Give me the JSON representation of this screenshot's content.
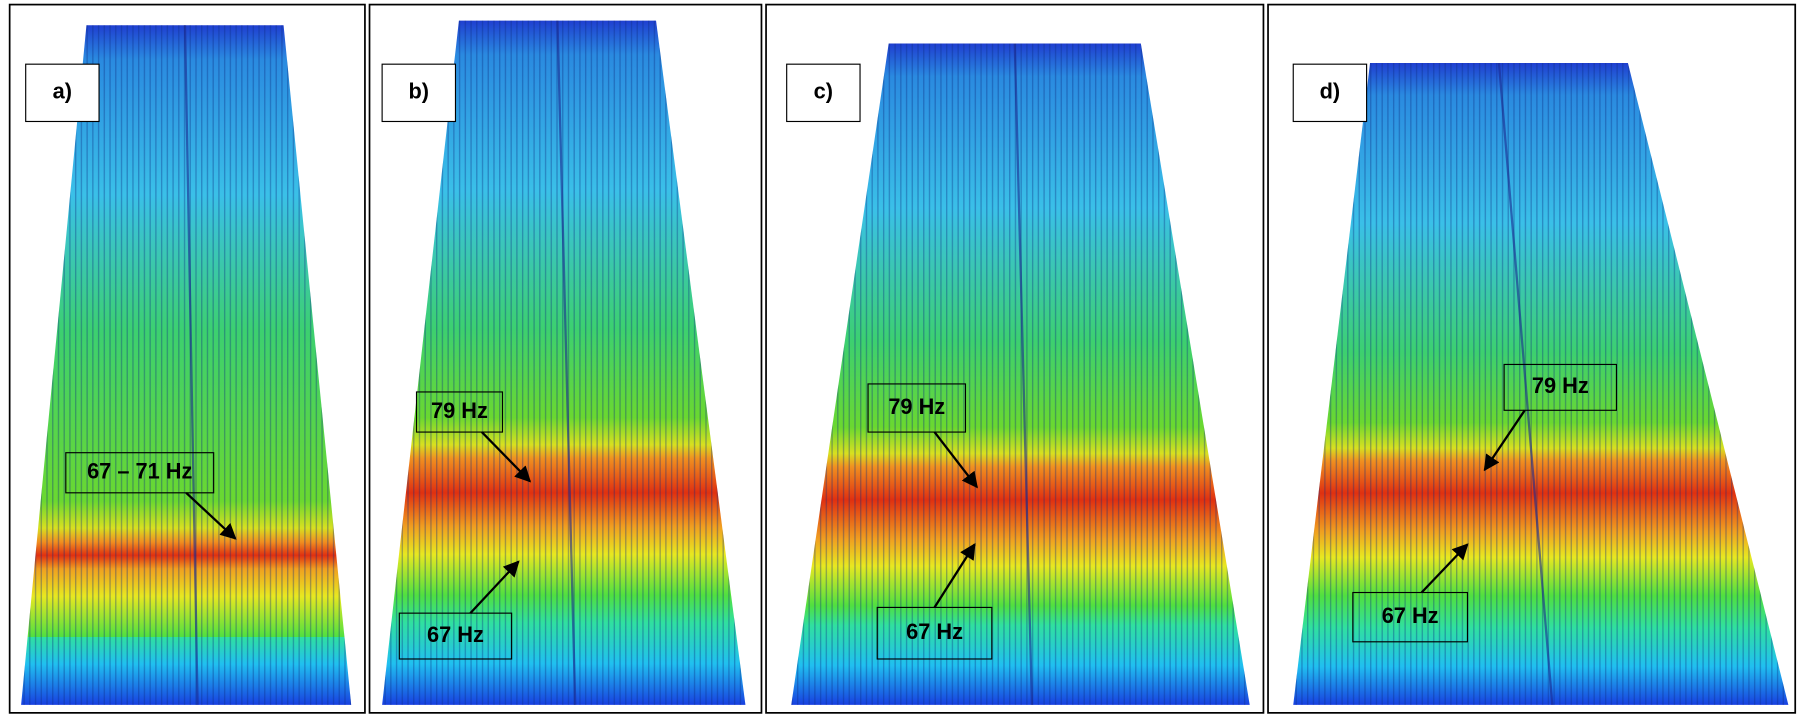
{
  "panels": [
    {
      "label": "a)",
      "annotations": [
        "67 – 71 Hz"
      ]
    },
    {
      "label": "b)",
      "annotations": [
        "79 Hz",
        "67 Hz"
      ]
    },
    {
      "label": "c)",
      "annotations": [
        "79 Hz",
        "67 Hz"
      ]
    },
    {
      "label": "d)",
      "annotations": [
        "79 Hz",
        "67 Hz"
      ]
    }
  ]
}
